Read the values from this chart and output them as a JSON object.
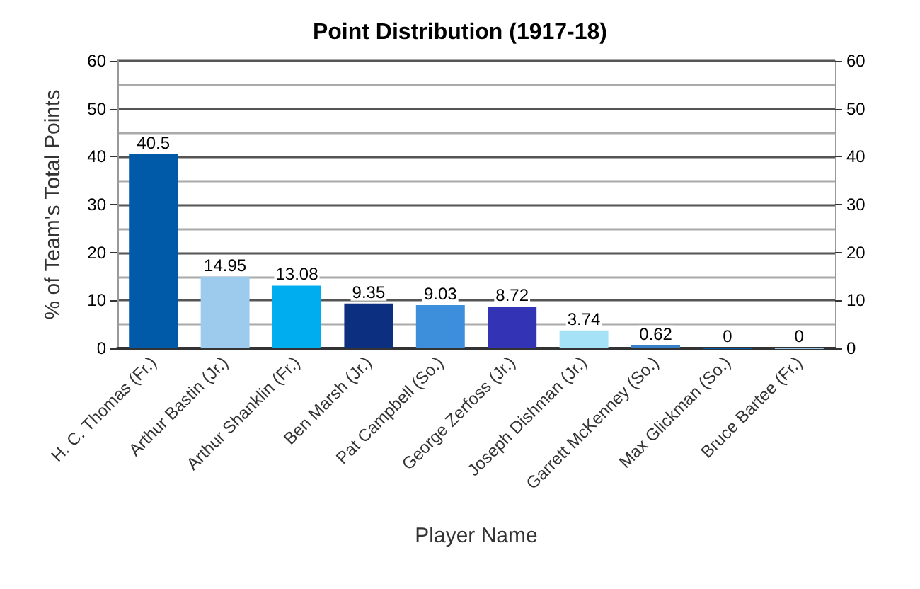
{
  "chart_data": {
    "type": "bar",
    "title": "Point Distribution (1917-18)",
    "xlabel": "Player Name",
    "ylabel": "% of Team's Total Points",
    "categories": [
      "H. C. Thomas (Fr.)",
      "Arthur Bastin (Jr.)",
      "Arthur Shanklin (Fr.)",
      "Ben Marsh (Jr.)",
      "Pat Campbell (So.)",
      "George Zerfoss (Jr.)",
      "Joseph Dishman (Jr.)",
      "Garrett McKenney (So.)",
      "Max Glickman (So.)",
      "Bruce Bartee (Fr.)"
    ],
    "values": [
      40.5,
      14.95,
      13.08,
      9.35,
      9.03,
      8.72,
      3.74,
      0.62,
      0,
      0
    ],
    "colors": [
      "#005aa8",
      "#9dcbee",
      "#00aeef",
      "#0d2f80",
      "#3d8fdc",
      "#3333b5",
      "#a5e2f8",
      "#3a80c8",
      "#005aa8",
      "#9dcbee"
    ],
    "data_labels": true,
    "ylim": [
      0,
      60
    ],
    "yticks": [
      0,
      10,
      20,
      30,
      40,
      50,
      60
    ],
    "y2lim": [
      0,
      60
    ],
    "y2ticks": [
      0,
      10,
      20,
      30,
      40,
      50,
      60
    ],
    "grid": true
  }
}
